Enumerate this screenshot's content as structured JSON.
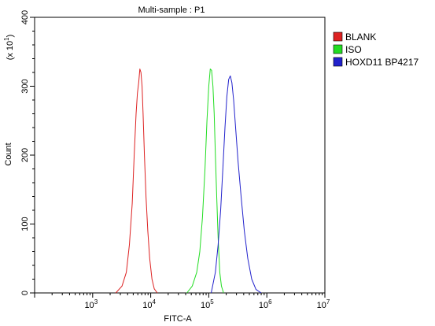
{
  "chart_data": {
    "type": "line",
    "title": "Multi-sample : P1",
    "xlabel": "FITC-A",
    "ylabel": "Count",
    "y_multiplier_label": "(x 10",
    "y_multiplier_exponent": "1",
    "x_scale": "log",
    "xlim": [
      100,
      10000000
    ],
    "ylim": [
      0,
      40
    ],
    "x_ticks": [
      {
        "base": "10",
        "exp": "3",
        "value": 1000
      },
      {
        "base": "10",
        "exp": "4",
        "value": 10000
      },
      {
        "base": "10",
        "exp": "5",
        "value": 100000
      },
      {
        "base": "10",
        "exp": "6",
        "value": 1000000
      },
      {
        "base": "10",
        "exp": "7",
        "value": 10000000
      }
    ],
    "y_ticks": [
      {
        "label": "0",
        "value": 0
      },
      {
        "label": "100",
        "value": 10
      },
      {
        "label": "200",
        "value": 20
      },
      {
        "label": "300",
        "value": 30
      },
      {
        "label": "400",
        "value": 40
      }
    ],
    "grid": false,
    "legend_position": "right",
    "series": [
      {
        "name": "BLANK",
        "color": "#dd2222",
        "x": [
          2500,
          3200,
          3800,
          4300,
          4800,
          5200,
          5600,
          5900,
          6200,
          6500,
          6800,
          7100,
          7400,
          7800,
          8300,
          8900,
          9600,
          10500,
          11500,
          13000
        ],
        "y": [
          0,
          1,
          3,
          7,
          13,
          20,
          26,
          29,
          30.5,
          32.5,
          32,
          30,
          26,
          20,
          14,
          9,
          5,
          2,
          0.6,
          0
        ]
      },
      {
        "name": "ISO",
        "color": "#22dd22",
        "x": [
          42000,
          52000,
          62000,
          70000,
          78000,
          86000,
          93000,
          100000,
          106000,
          112000,
          118000,
          124000,
          130000,
          137000,
          145000,
          155000,
          165000,
          180000
        ],
        "y": [
          0,
          1,
          3,
          6,
          11,
          18,
          25,
          30,
          32.5,
          32.3,
          30,
          26,
          20,
          14,
          8,
          3,
          1,
          0
        ]
      },
      {
        "name": "HOXD11 BP4217",
        "color": "#2222cc",
        "x": [
          110000,
          130000,
          145000,
          160000,
          175000,
          190000,
          205000,
          220000,
          235000,
          250000,
          268000,
          290000,
          320000,
          360000,
          410000,
          470000,
          550000,
          650000,
          800000
        ],
        "y": [
          0,
          3,
          7,
          12,
          18,
          24,
          28.5,
          31,
          31.5,
          30.5,
          28,
          24,
          19,
          14,
          9,
          5,
          2,
          0.5,
          0
        ]
      }
    ]
  }
}
